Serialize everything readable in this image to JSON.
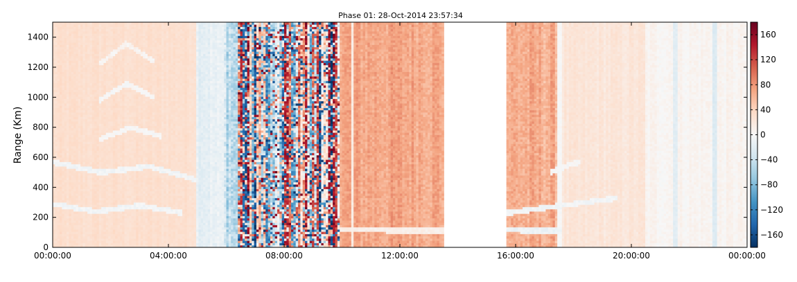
{
  "chart_data": {
    "type": "heatmap",
    "title": "Phase 01: 28-Oct-2014 23:57:34",
    "ylabel": "Range (Km)",
    "xlabel": "",
    "x_ticks": [
      "00:00:00",
      "04:00:00",
      "08:00:00",
      "12:00:00",
      "16:00:00",
      "20:00:00",
      "00:00:00"
    ],
    "x_range_hours": [
      0,
      24
    ],
    "y_ticks": [
      0,
      200,
      400,
      600,
      800,
      1000,
      1200,
      1400
    ],
    "y_range": [
      0,
      1500
    ],
    "colorbar": {
      "ticks": [
        -160,
        -120,
        -80,
        -40,
        0,
        40,
        80,
        120,
        160
      ],
      "range": [
        -180,
        180
      ],
      "colormap": "RdBu_r",
      "colors": [
        "#053061",
        "#2166ac",
        "#4393c3",
        "#92c5de",
        "#d1e5f0",
        "#f7f7f7",
        "#fddbc7",
        "#f4a582",
        "#d6604d",
        "#b2182b",
        "#67001f"
      ]
    },
    "data_gap_hours": [
      13.55,
      15.7
    ],
    "time_segments": [
      {
        "start": 0.0,
        "end": 5.0,
        "phase": 30,
        "noise": 8,
        "kind": "smooth"
      },
      {
        "start": 5.0,
        "end": 5.9,
        "phase": -15,
        "noise": 15,
        "kind": "smooth"
      },
      {
        "start": 5.9,
        "end": 6.4,
        "phase": -40,
        "noise": 40,
        "kind": "transition"
      },
      {
        "start": 6.4,
        "end": 9.9,
        "phase": 0,
        "noise": 180,
        "kind": "random"
      },
      {
        "start": 9.9,
        "end": 13.55,
        "phase": 70,
        "noise": 20,
        "kind": "noisy"
      },
      {
        "start": 15.7,
        "end": 17.6,
        "phase": 65,
        "noise": 22,
        "kind": "noisy"
      },
      {
        "start": 17.6,
        "end": 20.5,
        "phase": 22,
        "noise": 10,
        "kind": "smooth"
      },
      {
        "start": 20.5,
        "end": 24.0,
        "phase": 5,
        "noise": 10,
        "kind": "smooth"
      }
    ],
    "features": [
      {
        "kind": "band",
        "t_start": 0.0,
        "t_end": 5.0,
        "range_km": [
          570,
          500,
          540,
          450
        ],
        "phase": -5
      },
      {
        "kind": "band",
        "t_start": 0.0,
        "t_end": 4.5,
        "range_km": [
          290,
          240,
          280,
          230
        ],
        "phase": -5
      },
      {
        "kind": "band",
        "t_start": 1.6,
        "t_end": 3.8,
        "range_km": [
          720,
          800,
          740
        ],
        "phase": 0
      },
      {
        "kind": "band",
        "t_start": 1.6,
        "t_end": 3.5,
        "range_km": [
          980,
          1090,
          1000
        ],
        "phase": 0
      },
      {
        "kind": "band",
        "t_start": 1.6,
        "t_end": 3.5,
        "range_km": [
          1220,
          1360,
          1240
        ],
        "phase": 5
      },
      {
        "kind": "band",
        "t_start": 15.7,
        "t_end": 19.5,
        "range_km": [
          230,
          280,
          330
        ],
        "phase": -5
      },
      {
        "kind": "band",
        "t_start": 15.7,
        "t_end": 17.6,
        "range_km": [
          120,
          110,
          110
        ],
        "phase": -10
      },
      {
        "kind": "band",
        "t_start": 17.2,
        "t_end": 18.2,
        "range_km": [
          500,
          540,
          570
        ],
        "phase": 0
      },
      {
        "kind": "band",
        "t_start": 9.9,
        "t_end": 13.55,
        "range_km": [
          120,
          115,
          115
        ],
        "phase": 10
      },
      {
        "kind": "column",
        "t": 10.35,
        "width_hours": 0.07,
        "phase": 15
      },
      {
        "kind": "column",
        "t": 17.5,
        "width_hours": 0.08,
        "phase": 0
      },
      {
        "kind": "column",
        "t": 21.5,
        "width_hours": 0.08,
        "phase": -20
      },
      {
        "kind": "column",
        "t": 22.9,
        "width_hours": 0.1,
        "phase": -25
      }
    ]
  }
}
